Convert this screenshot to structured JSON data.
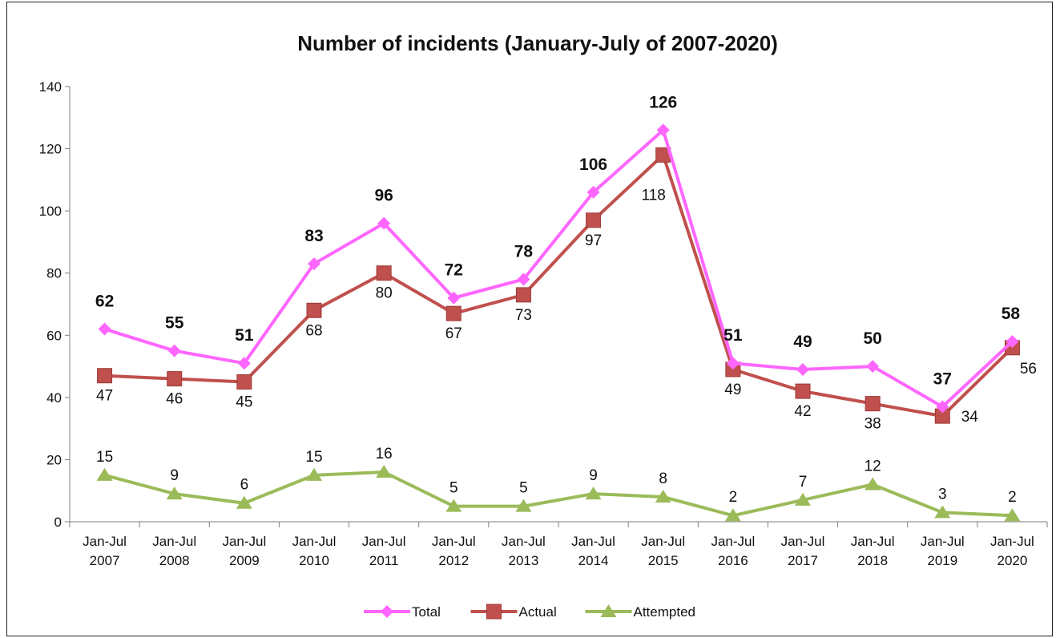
{
  "chart_data": {
    "type": "line",
    "title": "Number of incidents (January-July of 2007-2020)",
    "categories": [
      [
        "Jan-Jul",
        "2007"
      ],
      [
        "Jan-Jul",
        "2008"
      ],
      [
        "Jan-Jul",
        "2009"
      ],
      [
        "Jan-Jul",
        "2010"
      ],
      [
        "Jan-Jul",
        "2011"
      ],
      [
        "Jan-Jul",
        "2012"
      ],
      [
        "Jan-Jul",
        "2013"
      ],
      [
        "Jan-Jul",
        "2014"
      ],
      [
        "Jan-Jul",
        "2015"
      ],
      [
        "Jan-Jul",
        "2016"
      ],
      [
        "Jan-Jul",
        "2017"
      ],
      [
        "Jan-Jul",
        "2018"
      ],
      [
        "Jan-Jul",
        "2019"
      ],
      [
        "Jan-Jul",
        "2020"
      ]
    ],
    "ylim": [
      0,
      140
    ],
    "yticks": [
      "0",
      "20",
      "40",
      "60",
      "80",
      "100",
      "120",
      "140"
    ],
    "grid": false,
    "legend_position": "bottom",
    "series": [
      {
        "name": "Total",
        "color": "#ff66ff",
        "marker": "diamond",
        "label_style": "bold",
        "label_position": "above",
        "values": [
          62,
          55,
          51,
          83,
          96,
          72,
          78,
          106,
          126,
          51,
          49,
          50,
          37,
          58
        ]
      },
      {
        "name": "Actual",
        "color": "#c0504d",
        "marker": "square",
        "label_style": "normal",
        "label_position": "below",
        "values": [
          47,
          46,
          45,
          68,
          80,
          67,
          73,
          97,
          118,
          49,
          42,
          38,
          34,
          56
        ]
      },
      {
        "name": "Attempted",
        "color": "#9bbb59",
        "marker": "triangle",
        "label_style": "normal",
        "label_position": "above",
        "values": [
          15,
          9,
          6,
          15,
          16,
          5,
          5,
          9,
          8,
          2,
          7,
          12,
          3,
          2
        ]
      }
    ]
  }
}
